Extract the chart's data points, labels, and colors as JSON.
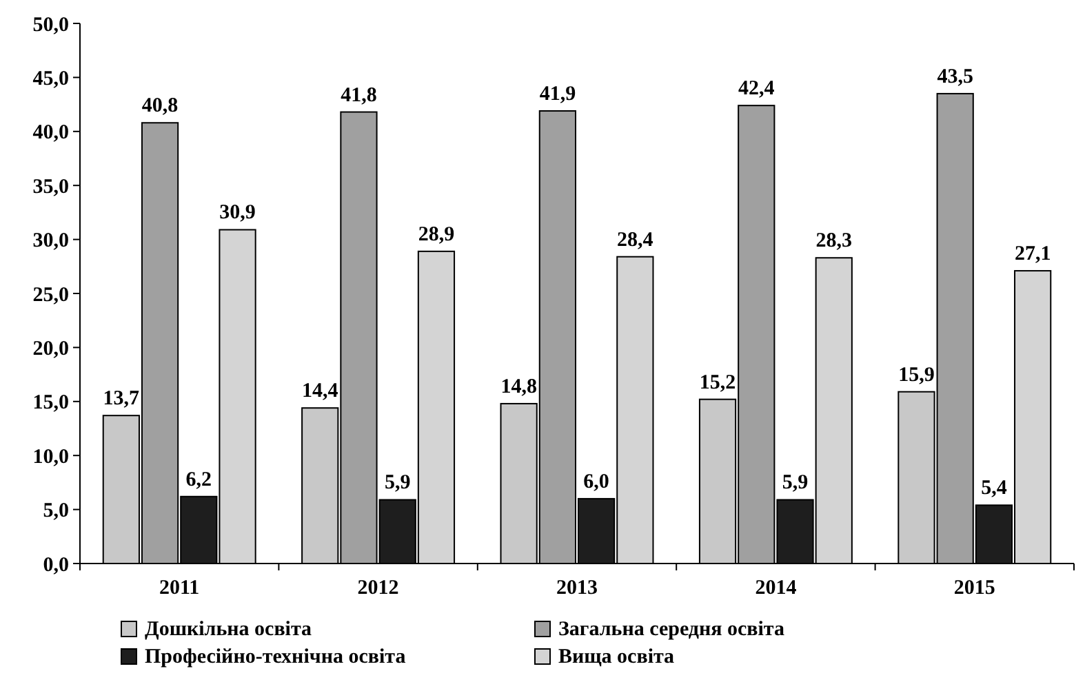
{
  "chart_data": {
    "type": "bar",
    "categories": [
      "2011",
      "2012",
      "2013",
      "2014",
      "2015"
    ],
    "series": [
      {
        "name": "Дошкільна освіта",
        "color": "#c8c8c8",
        "values": [
          13.7,
          14.4,
          14.8,
          15.2,
          15.9
        ],
        "value_labels": [
          "13,7",
          "14,4",
          "14,8",
          "15,2",
          "15,9"
        ]
      },
      {
        "name": "Загальна середня освіта",
        "color": "#a0a0a0",
        "values": [
          40.8,
          41.8,
          41.9,
          42.4,
          43.5
        ],
        "value_labels": [
          "40,8",
          "41,8",
          "41,9",
          "42,4",
          "43,5"
        ]
      },
      {
        "name": "Професійно-технічна освіта",
        "color": "#1e1e1e",
        "values": [
          6.2,
          5.9,
          6.0,
          5.9,
          5.4
        ],
        "value_labels": [
          "6,2",
          "5,9",
          "6,0",
          "5,9",
          "5,4"
        ]
      },
      {
        "name": "Вища освіта",
        "color": "#d4d4d4",
        "values": [
          30.9,
          28.9,
          28.4,
          28.3,
          27.1
        ],
        "value_labels": [
          "30,9",
          "28,9",
          "28,4",
          "28,3",
          "27,1"
        ]
      }
    ],
    "ylim": [
      0,
      50
    ],
    "yticks": [
      {
        "value": 0,
        "label": "0,0"
      },
      {
        "value": 5,
        "label": "5,0"
      },
      {
        "value": 10,
        "label": "10,0"
      },
      {
        "value": 15,
        "label": "15,0"
      },
      {
        "value": 20,
        "label": "20,0"
      },
      {
        "value": 25,
        "label": "25,0"
      },
      {
        "value": 30,
        "label": "30,0"
      },
      {
        "value": 35,
        "label": "35,0"
      },
      {
        "value": 40,
        "label": "40,0"
      },
      {
        "value": 45,
        "label": "45,0"
      },
      {
        "value": 50,
        "label": "50,0"
      }
    ],
    "grid": false,
    "legend": "bottom"
  }
}
